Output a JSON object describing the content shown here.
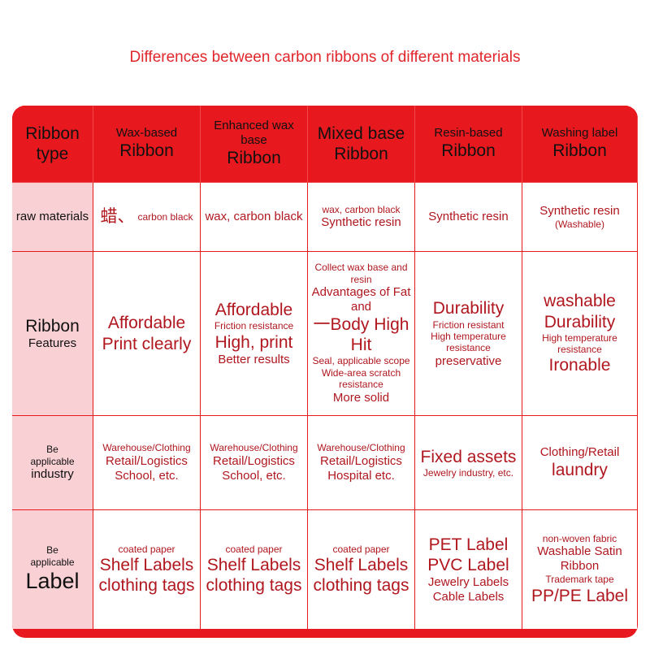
{
  "title": "Differences between carbon ribbons of different materials",
  "table": {
    "header": [
      [
        "Ribbon",
        "type"
      ],
      [
        "Wax-based",
        "Ribbon"
      ],
      [
        "Enhanced wax base",
        "Ribbon"
      ],
      [
        "Mixed base",
        "Ribbon"
      ],
      [
        "Resin-based",
        "Ribbon"
      ],
      [
        "Washing label",
        "Ribbon"
      ]
    ],
    "rows": [
      [
        [
          "raw materials"
        ],
        [
          "蜡、",
          "carbon black"
        ],
        [
          "wax, carbon black"
        ],
        [
          "wax, carbon black",
          "Synthetic resin"
        ],
        [
          "Synthetic resin"
        ],
        [
          "Synthetic resin",
          "(Washable)"
        ]
      ],
      [
        [
          "Ribbon",
          "Features"
        ],
        [
          "Affordable",
          "Print clearly"
        ],
        [
          "Affordable",
          "Friction resistance",
          "High, print",
          "Better results"
        ],
        [
          "Collect wax base and resin",
          "Advantages of Fat and",
          "一Body High Hit",
          "Seal, applicable scope",
          "Wide-area scratch resistance",
          "More solid"
        ],
        [
          "Durability",
          "Friction resistant",
          "High temperature resistance",
          "preservative"
        ],
        [
          "washable",
          "Durability",
          "High temperature resistance",
          "Ironable"
        ]
      ],
      [
        [
          "Be",
          "applicable",
          "industry"
        ],
        [
          "Warehouse/Clothing",
          "Retail/Logistics",
          "School, etc."
        ],
        [
          "Warehouse/Clothing",
          "Retail/Logistics",
          "School, etc."
        ],
        [
          "Warehouse/Clothing",
          "Retail/Logistics",
          "Hospital etc."
        ],
        [
          "Fixed assets",
          "Jewelry industry, etc."
        ],
        [
          "Clothing/Retail",
          "laundry"
        ]
      ],
      [
        [
          "Be",
          "applicable",
          "Label"
        ],
        [
          "coated paper",
          "Shelf Labels",
          "clothing tags"
        ],
        [
          "coated paper",
          "Shelf Labels",
          "clothing tags"
        ],
        [
          "coated paper",
          "Shelf Labels",
          "clothing tags"
        ],
        [
          "PET Label",
          "PVC Label",
          "Jewelry Labels",
          "Cable Labels"
        ],
        [
          "non-woven fabric",
          "Washable Satin Ribbon",
          "Trademark tape",
          "PP/PE Label"
        ]
      ]
    ]
  }
}
